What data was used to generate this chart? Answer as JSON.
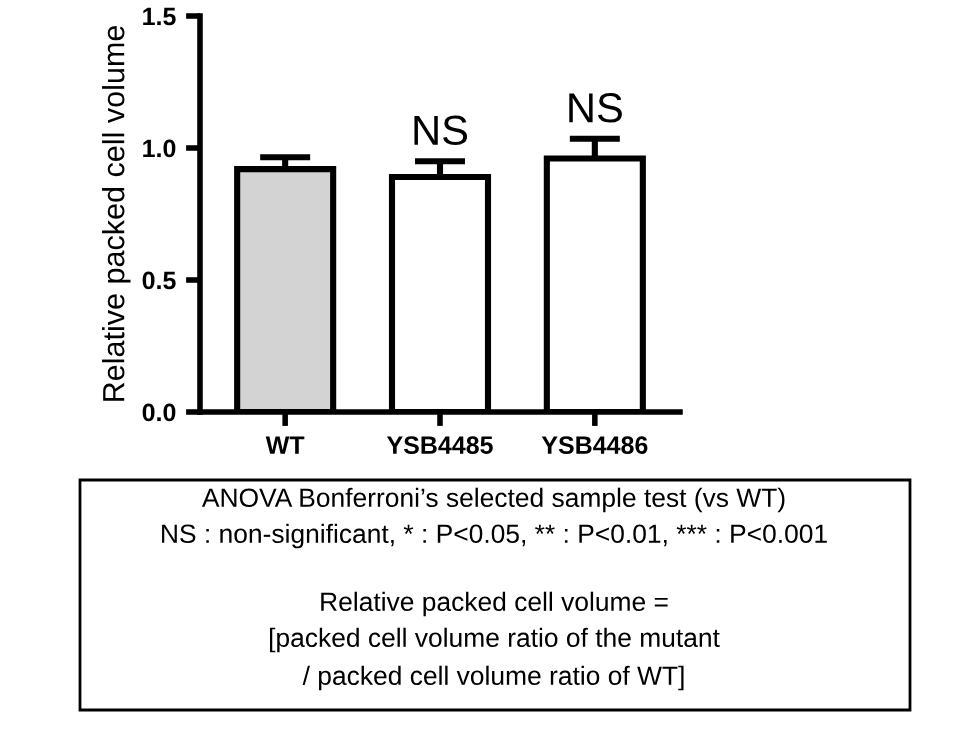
{
  "chart_data": {
    "type": "bar",
    "ylabel": "Relative packed cell volume",
    "categories": [
      "WT",
      "YSB4485",
      "YSB4486"
    ],
    "values": [
      0.92,
      0.89,
      0.96
    ],
    "colors": [
      "#d3d3d3",
      "#ffffff",
      "#ffffff"
    ],
    "errors": [
      0.045,
      0.06,
      0.075
    ],
    "ylim": [
      0,
      1.5
    ],
    "yticks": [
      {
        "value": 0,
        "label": "0.0"
      },
      0.5,
      {
        "value": 1,
        "label": "1.0"
      },
      1.5
    ],
    "grid": false,
    "annotations": [
      {
        "text": "NS",
        "x": "YSB4485",
        "y": 0.89
      },
      {
        "text": "NS",
        "x": "YSB4486",
        "y": 0.96
      },
      "ANOVA Bonferroni’s selected sample test (vs WT)",
      "NS : non-significant, * : P<0.05, ** : P<0.01, *** : P<0.001",
      "Relative packed cell volume =",
      "[packed cell volume ratio of the mutant",
      "/ packed cell volume ratio of WT]"
    ]
  }
}
